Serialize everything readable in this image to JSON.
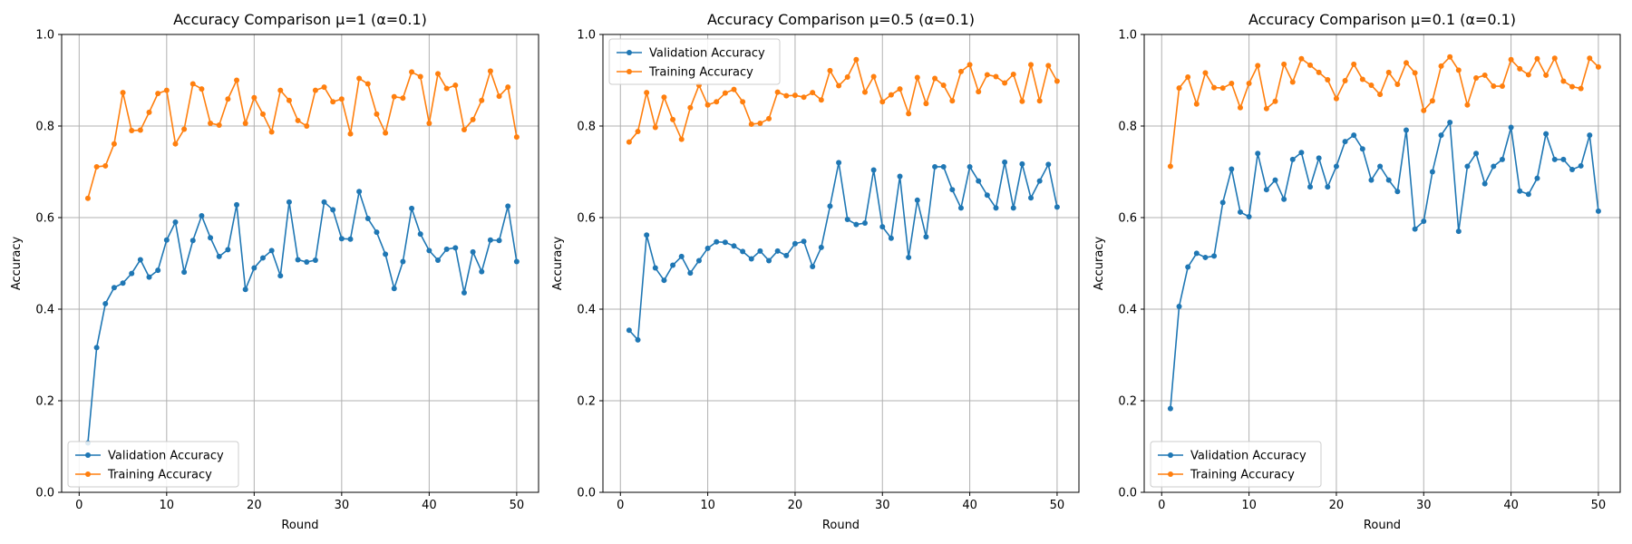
{
  "colors": {
    "validation": "#1f77b4",
    "training": "#ff7f0e",
    "grid": "#b0b0b0",
    "axis": "#000000"
  },
  "chart_data": [
    {
      "type": "line",
      "title": "Accuracy Comparison μ=1 (α=0.1)",
      "xlabel": "Round",
      "ylabel": "Accuracy",
      "xlim": [
        -2,
        52.5
      ],
      "ylim": [
        0,
        1
      ],
      "xticks": [
        "0",
        "10",
        "20",
        "30",
        "40",
        "50"
      ],
      "yticks": [
        "0.0",
        "0.2",
        "0.4",
        "0.6",
        "0.8",
        "1.0"
      ],
      "grid": true,
      "legend_position": "lower-left",
      "x": [
        1,
        2,
        3,
        4,
        5,
        6,
        7,
        8,
        9,
        10,
        11,
        12,
        13,
        14,
        15,
        16,
        17,
        18,
        19,
        20,
        21,
        22,
        23,
        24,
        25,
        26,
        27,
        28,
        29,
        30,
        31,
        32,
        33,
        34,
        35,
        36,
        37,
        38,
        39,
        40,
        41,
        42,
        43,
        44,
        45,
        46,
        47,
        48,
        49,
        50
      ],
      "series": [
        {
          "name": "Validation Accuracy",
          "values": [
            0.108,
            0.316,
            0.412,
            0.447,
            0.457,
            0.478,
            0.508,
            0.47,
            0.485,
            0.551,
            0.59,
            0.481,
            0.55,
            0.604,
            0.556,
            0.515,
            0.53,
            0.628,
            0.443,
            0.49,
            0.512,
            0.528,
            0.473,
            0.634,
            0.508,
            0.503,
            0.507,
            0.634,
            0.617,
            0.554,
            0.553,
            0.657,
            0.598,
            0.568,
            0.52,
            0.445,
            0.504,
            0.62,
            0.564,
            0.528,
            0.507,
            0.531,
            0.534,
            0.436,
            0.525,
            0.482,
            0.551,
            0.55,
            0.625,
            0.504
          ]
        },
        {
          "name": "Training Accuracy",
          "values": [
            0.642,
            0.711,
            0.713,
            0.761,
            0.873,
            0.79,
            0.791,
            0.83,
            0.871,
            0.878,
            0.761,
            0.793,
            0.892,
            0.881,
            0.806,
            0.802,
            0.859,
            0.9,
            0.806,
            0.862,
            0.826,
            0.787,
            0.878,
            0.856,
            0.812,
            0.8,
            0.878,
            0.885,
            0.853,
            0.859,
            0.783,
            0.904,
            0.892,
            0.826,
            0.785,
            0.864,
            0.861,
            0.918,
            0.908,
            0.806,
            0.914,
            0.882,
            0.889,
            0.792,
            0.814,
            0.856,
            0.92,
            0.865,
            0.885,
            0.776
          ]
        }
      ]
    },
    {
      "type": "line",
      "title": "Accuracy Comparison μ=0.5 (α=0.1)",
      "xlabel": "Round",
      "ylabel": "Accuracy",
      "xlim": [
        -2,
        52.5
      ],
      "ylim": [
        0,
        1
      ],
      "xticks": [
        "0",
        "10",
        "20",
        "30",
        "40",
        "50"
      ],
      "yticks": [
        "0.0",
        "0.2",
        "0.4",
        "0.6",
        "0.8",
        "1.0"
      ],
      "grid": true,
      "legend_position": "upper-left",
      "x": [
        1,
        2,
        3,
        4,
        5,
        6,
        7,
        8,
        9,
        10,
        11,
        12,
        13,
        14,
        15,
        16,
        17,
        18,
        19,
        20,
        21,
        22,
        23,
        24,
        25,
        26,
        27,
        28,
        29,
        30,
        31,
        32,
        33,
        34,
        35,
        36,
        37,
        38,
        39,
        40,
        41,
        42,
        43,
        44,
        45,
        46,
        47,
        48,
        49,
        50
      ],
      "series": [
        {
          "name": "Validation Accuracy",
          "values": [
            0.354,
            0.333,
            0.562,
            0.49,
            0.463,
            0.496,
            0.515,
            0.479,
            0.506,
            0.533,
            0.547,
            0.546,
            0.538,
            0.526,
            0.51,
            0.527,
            0.506,
            0.527,
            0.517,
            0.543,
            0.548,
            0.493,
            0.535,
            0.625,
            0.72,
            0.596,
            0.585,
            0.588,
            0.704,
            0.58,
            0.555,
            0.69,
            0.513,
            0.638,
            0.558,
            0.711,
            0.711,
            0.661,
            0.621,
            0.711,
            0.68,
            0.649,
            0.621,
            0.721,
            0.621,
            0.717,
            0.643,
            0.68,
            0.716,
            0.623
          ]
        },
        {
          "name": "Training Accuracy",
          "values": [
            0.765,
            0.788,
            0.873,
            0.797,
            0.863,
            0.814,
            0.771,
            0.84,
            0.889,
            0.846,
            0.853,
            0.872,
            0.88,
            0.853,
            0.804,
            0.806,
            0.816,
            0.874,
            0.866,
            0.867,
            0.863,
            0.873,
            0.857,
            0.921,
            0.888,
            0.907,
            0.945,
            0.874,
            0.908,
            0.853,
            0.868,
            0.881,
            0.827,
            0.906,
            0.849,
            0.904,
            0.889,
            0.855,
            0.919,
            0.934,
            0.875,
            0.912,
            0.908,
            0.894,
            0.913,
            0.854,
            0.934,
            0.855,
            0.932,
            0.898
          ]
        }
      ]
    },
    {
      "type": "line",
      "title": "Accuracy Comparison μ=0.1 (α=0.1)",
      "xlabel": "Round",
      "ylabel": "Accuracy",
      "xlim": [
        -2,
        52.5
      ],
      "ylim": [
        0,
        1
      ],
      "xticks": [
        "0",
        "10",
        "20",
        "30",
        "40",
        "50"
      ],
      "yticks": [
        "0.0",
        "0.2",
        "0.4",
        "0.6",
        "0.8",
        "1.0"
      ],
      "grid": true,
      "legend_position": "lower-left",
      "x": [
        1,
        2,
        3,
        4,
        5,
        6,
        7,
        8,
        9,
        10,
        11,
        12,
        13,
        14,
        15,
        16,
        17,
        18,
        19,
        20,
        21,
        22,
        23,
        24,
        25,
        26,
        27,
        28,
        29,
        30,
        31,
        32,
        33,
        34,
        35,
        36,
        37,
        38,
        39,
        40,
        41,
        42,
        43,
        44,
        45,
        46,
        47,
        48,
        49,
        50
      ],
      "series": [
        {
          "name": "Validation Accuracy",
          "values": [
            0.183,
            0.406,
            0.492,
            0.522,
            0.513,
            0.516,
            0.633,
            0.706,
            0.612,
            0.602,
            0.74,
            0.661,
            0.682,
            0.64,
            0.727,
            0.742,
            0.667,
            0.73,
            0.667,
            0.712,
            0.766,
            0.78,
            0.75,
            0.682,
            0.712,
            0.682,
            0.657,
            0.791,
            0.575,
            0.592,
            0.7,
            0.78,
            0.808,
            0.57,
            0.712,
            0.74,
            0.674,
            0.712,
            0.727,
            0.797,
            0.658,
            0.651,
            0.686,
            0.783,
            0.727,
            0.727,
            0.705,
            0.713,
            0.78,
            0.614
          ]
        },
        {
          "name": "Training Accuracy",
          "values": [
            0.712,
            0.883,
            0.907,
            0.848,
            0.916,
            0.884,
            0.883,
            0.893,
            0.84,
            0.893,
            0.932,
            0.838,
            0.854,
            0.935,
            0.896,
            0.947,
            0.933,
            0.917,
            0.901,
            0.86,
            0.899,
            0.935,
            0.902,
            0.889,
            0.869,
            0.917,
            0.891,
            0.938,
            0.916,
            0.834,
            0.855,
            0.931,
            0.951,
            0.922,
            0.846,
            0.905,
            0.911,
            0.887,
            0.887,
            0.945,
            0.925,
            0.912,
            0.947,
            0.911,
            0.948,
            0.898,
            0.886,
            0.882,
            0.948,
            0.929
          ]
        }
      ]
    }
  ]
}
